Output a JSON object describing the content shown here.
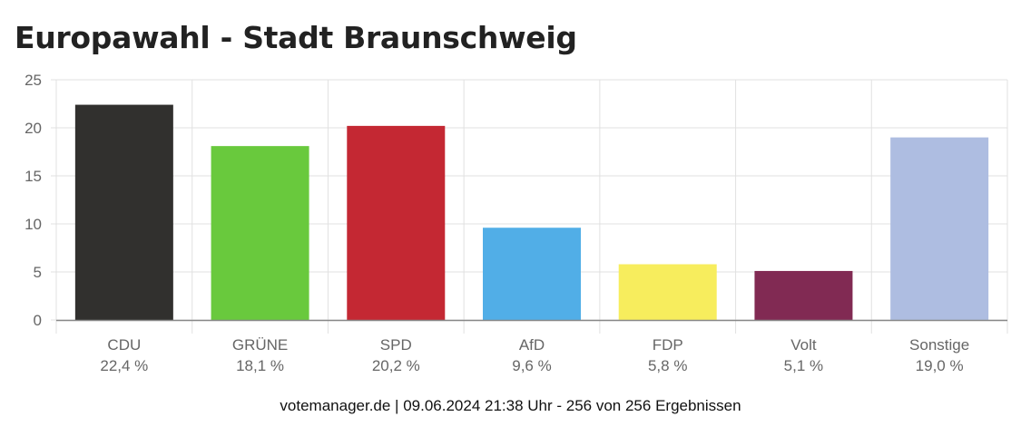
{
  "title": "Europawahl - Stadt Braunschweig",
  "footer": "votemanager.de | 09.06.2024 21:38 Uhr - 256 von 256 Ergebnissen",
  "chart_data": {
    "type": "bar",
    "title": "Europawahl - Stadt Braunschweig",
    "xlabel": "",
    "ylabel": "",
    "ylim": [
      0,
      25
    ],
    "yticks": [
      0,
      5,
      10,
      15,
      20,
      25
    ],
    "grid": true,
    "categories": [
      "CDU",
      "GRÜNE",
      "SPD",
      "AfD",
      "FDP",
      "Volt",
      "Sonstige"
    ],
    "values": [
      22.4,
      18.1,
      20.2,
      9.6,
      5.8,
      5.1,
      19.0
    ],
    "value_labels": [
      "22,4 %",
      "18,1 %",
      "20,2 %",
      "9,6 %",
      "5,8 %",
      "5,1 %",
      "19,0 %"
    ],
    "colors": [
      "#31302e",
      "#69c93d",
      "#c42833",
      "#51aee7",
      "#f7ed5d",
      "#812a53",
      "#aebde1"
    ]
  }
}
